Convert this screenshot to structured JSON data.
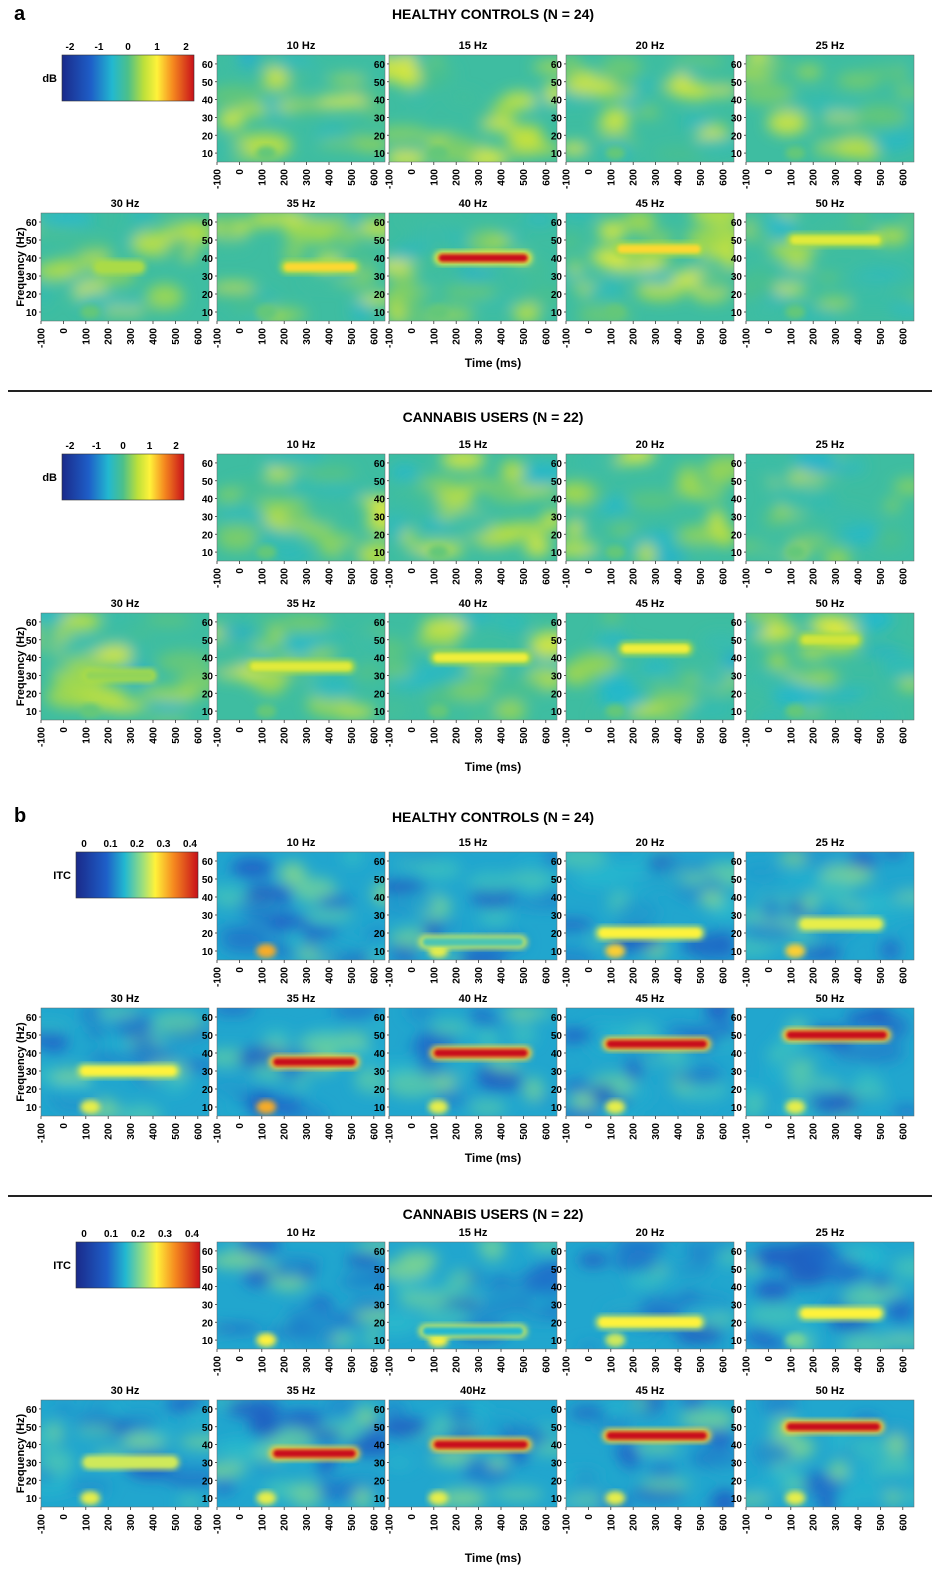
{
  "figure": {
    "panel_a_label": "a",
    "panel_b_label": "b"
  },
  "colorscales": {
    "power": {
      "label": "dB",
      "ticks": [
        "-2",
        "-1",
        "0",
        "1",
        "2"
      ]
    },
    "itc": {
      "label": "ITC",
      "ticks": [
        "0",
        "0.1",
        "0.2",
        "0.3",
        "0.4"
      ]
    }
  },
  "colors": {
    "healthy_title": "#2b3aa8",
    "cannabis_title": "#0f8a3a",
    "map_low": "#1a2a8a",
    "map_mid": "#22b8d0",
    "map_high": "#c8101a"
  },
  "chart_data": [
    {
      "type": "heatmap",
      "panel": "a",
      "measure": "power",
      "title": "HEALTHY CONTROLS (N = 24)",
      "scale_label": "dB",
      "scale_range": [
        -2,
        2
      ],
      "xlabel": "Time (ms)",
      "ylabel": "Frequency (Hz)",
      "x_ticks": [
        "-100",
        "0",
        "100",
        "200",
        "300",
        "400",
        "500",
        "600"
      ],
      "y_ticks": [
        "60",
        "50",
        "40",
        "30",
        "20",
        "10"
      ],
      "xlim": [
        -100,
        650
      ],
      "ylim": [
        5,
        65
      ],
      "subplots": [
        {
          "title": "10 Hz",
          "stimulus_hz": 10,
          "band_hz": null,
          "band_time_ms": [
            0,
            500
          ],
          "peak_value": 0.3,
          "onset_bump": 0.1
        },
        {
          "title": "15 Hz",
          "stimulus_hz": 15,
          "band_hz": null,
          "band_time_ms": [
            0,
            500
          ],
          "peak_value": 0.3,
          "onset_bump": 0.1
        },
        {
          "title": "20 Hz",
          "stimulus_hz": 20,
          "band_hz": null,
          "band_time_ms": [
            0,
            500
          ],
          "peak_value": 0.3,
          "onset_bump": 0.1
        },
        {
          "title": "25 Hz",
          "stimulus_hz": 25,
          "band_hz": null,
          "band_time_ms": [
            0,
            500
          ],
          "peak_value": 0.3,
          "onset_bump": 0.1
        },
        {
          "title": "30 Hz",
          "stimulus_hz": 30,
          "band_hz": 35,
          "band_time_ms": [
            150,
            350
          ],
          "peak_value": 0.4,
          "onset_bump": 0.1
        },
        {
          "title": "35 Hz",
          "stimulus_hz": 35,
          "band_hz": 35,
          "band_time_ms": [
            200,
            520
          ],
          "peak_value": 1.0,
          "onset_bump": 0.1
        },
        {
          "title": "40 Hz",
          "stimulus_hz": 40,
          "band_hz": 40,
          "band_time_ms": [
            120,
            520
          ],
          "peak_value": 2.0,
          "onset_bump": 0.1
        },
        {
          "title": "45 Hz",
          "stimulus_hz": 45,
          "band_hz": 45,
          "band_time_ms": [
            130,
            500
          ],
          "peak_value": 1.0,
          "onset_bump": 0.1
        },
        {
          "title": "50 Hz",
          "stimulus_hz": 50,
          "band_hz": 50,
          "band_time_ms": [
            100,
            500
          ],
          "peak_value": 0.7,
          "onset_bump": 0.1
        }
      ]
    },
    {
      "type": "heatmap",
      "panel": "a",
      "measure": "power",
      "title": "CANNABIS USERS (N = 22)",
      "scale_label": "dB",
      "scale_range": [
        -2,
        2
      ],
      "xlabel": "Time (ms)",
      "ylabel": "Frequency (Hz)",
      "x_ticks": [
        "-100",
        "0",
        "100",
        "200",
        "300",
        "400",
        "500",
        "600"
      ],
      "y_ticks": [
        "60",
        "50",
        "40",
        "30",
        "20",
        "10"
      ],
      "xlim": [
        -100,
        650
      ],
      "ylim": [
        5,
        65
      ],
      "subplots": [
        {
          "title": "10 Hz",
          "stimulus_hz": 10,
          "band_hz": null,
          "band_time_ms": [
            0,
            500
          ],
          "peak_value": 0.3,
          "onset_bump": 0.1
        },
        {
          "title": "15 Hz",
          "stimulus_hz": 15,
          "band_hz": null,
          "band_time_ms": [
            0,
            500
          ],
          "peak_value": 0.3,
          "onset_bump": 0.1
        },
        {
          "title": "20 Hz",
          "stimulus_hz": 20,
          "band_hz": null,
          "band_time_ms": [
            0,
            500
          ],
          "peak_value": 0.3,
          "onset_bump": 0.1
        },
        {
          "title": "25 Hz",
          "stimulus_hz": 25,
          "band_hz": null,
          "band_time_ms": [
            0,
            500
          ],
          "peak_value": 0.3,
          "onset_bump": 0.1
        },
        {
          "title": "30 Hz",
          "stimulus_hz": 30,
          "band_hz": 30,
          "band_time_ms": [
            100,
            400
          ],
          "peak_value": 0.3,
          "onset_bump": 0.1
        },
        {
          "title": "35 Hz",
          "stimulus_hz": 35,
          "band_hz": 35,
          "band_time_ms": [
            50,
            500
          ],
          "peak_value": 0.7,
          "onset_bump": 0.1
        },
        {
          "title": "40 Hz",
          "stimulus_hz": 40,
          "band_hz": 40,
          "band_time_ms": [
            100,
            520
          ],
          "peak_value": 0.8,
          "onset_bump": 0.1
        },
        {
          "title": "45 Hz",
          "stimulus_hz": 45,
          "band_hz": 45,
          "band_time_ms": [
            150,
            450
          ],
          "peak_value": 0.8,
          "onset_bump": 0.1
        },
        {
          "title": "50 Hz",
          "stimulus_hz": 50,
          "band_hz": 50,
          "band_time_ms": [
            150,
            400
          ],
          "peak_value": 0.6,
          "onset_bump": 0.1
        }
      ]
    },
    {
      "type": "heatmap",
      "panel": "b",
      "measure": "itc",
      "title": "HEALTHY CONTROLS (N = 24)",
      "scale_label": "ITC",
      "scale_range": [
        0,
        0.4
      ],
      "xlabel": "Time (ms)",
      "ylabel": "Frequency (Hz)",
      "x_ticks": [
        "-100",
        "0",
        "100",
        "200",
        "300",
        "400",
        "500",
        "600"
      ],
      "y_ticks": [
        "60",
        "50",
        "40",
        "30",
        "20",
        "10"
      ],
      "xlim": [
        -100,
        650
      ],
      "ylim": [
        5,
        65
      ],
      "subplots": [
        {
          "title": "10 Hz",
          "stimulus_hz": 10,
          "band_hz": null,
          "band_time_ms": [
            0,
            500
          ],
          "peak_value": 0.0,
          "onset_bump": 0.3
        },
        {
          "title": "15 Hz",
          "stimulus_hz": 15,
          "band_hz": 15,
          "band_time_ms": [
            50,
            500
          ],
          "peak_value": 0.18,
          "onset_bump": 0.25
        },
        {
          "title": "20 Hz",
          "stimulus_hz": 20,
          "band_hz": 20,
          "band_time_ms": [
            50,
            500
          ],
          "peak_value": 0.26,
          "onset_bump": 0.28
        },
        {
          "title": "25 Hz",
          "stimulus_hz": 25,
          "band_hz": 25,
          "band_time_ms": [
            150,
            500
          ],
          "peak_value": 0.25,
          "onset_bump": 0.28
        },
        {
          "title": "30 Hz",
          "stimulus_hz": 30,
          "band_hz": 30,
          "band_time_ms": [
            80,
            500
          ],
          "peak_value": 0.26,
          "onset_bump": 0.25
        },
        {
          "title": "35 Hz",
          "stimulus_hz": 35,
          "band_hz": 35,
          "band_time_ms": [
            150,
            520
          ],
          "peak_value": 0.4,
          "onset_bump": 0.3
        },
        {
          "title": "40 Hz",
          "stimulus_hz": 40,
          "band_hz": 40,
          "band_time_ms": [
            100,
            520
          ],
          "peak_value": 0.4,
          "onset_bump": 0.25
        },
        {
          "title": "45 Hz",
          "stimulus_hz": 45,
          "band_hz": 45,
          "band_time_ms": [
            80,
            530
          ],
          "peak_value": 0.4,
          "onset_bump": 0.25
        },
        {
          "title": "50 Hz",
          "stimulus_hz": 50,
          "band_hz": 50,
          "band_time_ms": [
            80,
            530
          ],
          "peak_value": 0.4,
          "onset_bump": 0.25
        }
      ]
    },
    {
      "type": "heatmap",
      "panel": "b",
      "measure": "itc",
      "title": "CANNABIS USERS (N = 22)",
      "scale_label": "ITC",
      "scale_range": [
        0,
        0.4
      ],
      "xlabel": "Time (ms)",
      "ylabel": "Frequency (Hz)",
      "x_ticks": [
        "-100",
        "0",
        "100",
        "200",
        "300",
        "400",
        "500",
        "600"
      ],
      "y_ticks": [
        "60",
        "50",
        "40",
        "30",
        "20",
        "10"
      ],
      "xlim": [
        -100,
        650
      ],
      "ylim": [
        5,
        65
      ],
      "subplots": [
        {
          "title": "10 Hz",
          "stimulus_hz": 10,
          "band_hz": null,
          "band_time_ms": [
            0,
            500
          ],
          "peak_value": 0.0,
          "onset_bump": 0.26
        },
        {
          "title": "15 Hz",
          "stimulus_hz": 15,
          "band_hz": 15,
          "band_time_ms": [
            50,
            500
          ],
          "peak_value": 0.16,
          "onset_bump": 0.26
        },
        {
          "title": "20 Hz",
          "stimulus_hz": 20,
          "band_hz": 20,
          "band_time_ms": [
            50,
            500
          ],
          "peak_value": 0.26,
          "onset_bump": 0.24
        },
        {
          "title": "25 Hz",
          "stimulus_hz": 25,
          "band_hz": 25,
          "band_time_ms": [
            150,
            500
          ],
          "peak_value": 0.26,
          "onset_bump": 0.2
        },
        {
          "title": "30 Hz",
          "stimulus_hz": 30,
          "band_hz": 30,
          "band_time_ms": [
            100,
            500
          ],
          "peak_value": 0.24,
          "onset_bump": 0.25
        },
        {
          "title": "35 Hz",
          "stimulus_hz": 35,
          "band_hz": 35,
          "band_time_ms": [
            150,
            520
          ],
          "peak_value": 0.4,
          "onset_bump": 0.25
        },
        {
          "title": "40Hz",
          "stimulus_hz": 40,
          "band_hz": 40,
          "band_time_ms": [
            100,
            520
          ],
          "peak_value": 0.4,
          "onset_bump": 0.25
        },
        {
          "title": "45 Hz",
          "stimulus_hz": 45,
          "band_hz": 45,
          "band_time_ms": [
            80,
            530
          ],
          "peak_value": 0.4,
          "onset_bump": 0.25
        },
        {
          "title": "50 Hz",
          "stimulus_hz": 50,
          "band_hz": 50,
          "band_time_ms": [
            80,
            500
          ],
          "peak_value": 0.4,
          "onset_bump": 0.25
        }
      ]
    }
  ]
}
